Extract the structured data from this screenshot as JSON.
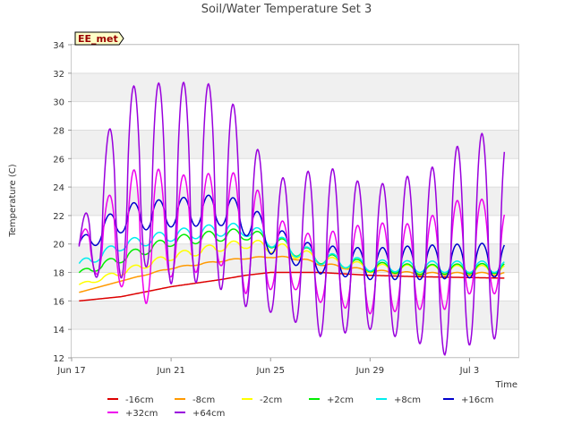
{
  "chart_data": {
    "type": "line",
    "title": "Soil/Water Temperature Set 3",
    "xlabel": "Time",
    "ylabel": "Temperature (C)",
    "site_label": "EE_met",
    "ylim": [
      12,
      34
    ],
    "yticks": [
      12,
      14,
      16,
      18,
      20,
      22,
      24,
      26,
      28,
      30,
      32,
      34
    ],
    "xlim_days": [
      0,
      18
    ],
    "xtick_labels": [
      "Jun 17",
      "Jun 21",
      "Jun 25",
      "Jun 29",
      "Jul 3"
    ],
    "xtick_days": [
      0,
      4,
      8,
      12,
      16
    ],
    "data_start_day": 0.3,
    "data_end_day": 17.4,
    "grid": true,
    "alternating_bands": true,
    "legend_position": "bottom",
    "series": [
      {
        "name": "-16cm",
        "color": "#dd0000",
        "x": [
          0.3,
          2,
          4,
          6,
          7,
          8,
          10,
          12,
          14,
          17.4
        ],
        "y": [
          16.0,
          16.3,
          17.0,
          17.5,
          17.8,
          18.0,
          18.0,
          17.8,
          17.7,
          17.6
        ],
        "daily_amp": [
          0,
          0,
          0,
          0,
          0,
          0,
          0,
          0,
          0,
          0
        ]
      },
      {
        "name": "-8cm",
        "color": "#ff9900",
        "x": [
          0.3,
          2,
          4,
          6,
          7,
          8,
          9,
          10,
          12,
          14,
          17.4
        ],
        "y": [
          16.6,
          17.4,
          18.3,
          18.8,
          19.0,
          19.1,
          19.0,
          18.6,
          18.1,
          17.9,
          17.9
        ],
        "daily_amp": [
          0,
          0,
          0.05,
          0.05,
          0.05,
          0.05,
          0.1,
          0.1,
          0.1,
          0.1,
          0.1
        ]
      },
      {
        "name": "-2cm",
        "color": "#ffff00",
        "x": [
          0.3,
          2,
          4,
          6,
          7,
          8,
          9,
          10,
          12,
          14,
          17.4
        ],
        "y": [
          17.1,
          18.0,
          19.1,
          19.8,
          20.0,
          19.8,
          19.4,
          18.9,
          18.3,
          18.2,
          18.2
        ],
        "daily_amp": [
          0.1,
          0.2,
          0.25,
          0.3,
          0.3,
          0.4,
          0.4,
          0.3,
          0.3,
          0.3,
          0.3
        ]
      },
      {
        "name": "+2cm",
        "color": "#00ee00",
        "x": [
          0.3,
          2,
          4,
          6,
          7,
          8,
          9,
          10,
          12,
          14,
          17.4
        ],
        "y": [
          17.9,
          19.0,
          20.2,
          20.6,
          20.7,
          20.2,
          19.6,
          19.0,
          18.4,
          18.2,
          18.3
        ],
        "daily_amp": [
          0.2,
          0.3,
          0.35,
          0.4,
          0.4,
          0.45,
          0.45,
          0.4,
          0.35,
          0.35,
          0.35
        ]
      },
      {
        "name": "+8cm",
        "color": "#00eeee",
        "x": [
          0.3,
          2,
          4,
          6,
          7,
          8,
          9,
          10,
          12,
          14,
          17.4
        ],
        "y": [
          18.5,
          19.9,
          20.6,
          21.0,
          21.0,
          20.3,
          19.6,
          19.0,
          18.5,
          18.4,
          18.4
        ],
        "daily_amp": [
          0.3,
          0.35,
          0.4,
          0.45,
          0.45,
          0.5,
          0.5,
          0.45,
          0.4,
          0.4,
          0.4
        ]
      },
      {
        "name": "+16cm",
        "color": "#0000cc",
        "x": [
          0.3,
          2,
          4,
          6,
          7,
          8,
          9,
          10,
          12,
          14,
          17.4
        ],
        "y": [
          19.8,
          21.8,
          22.2,
          22.4,
          21.8,
          20.4,
          19.4,
          18.9,
          18.6,
          18.7,
          18.9
        ],
        "daily_amp": [
          0.5,
          1.0,
          1.0,
          1.1,
          1.2,
          1.1,
          0.9,
          1.0,
          1.1,
          1.2,
          1.2
        ]
      },
      {
        "name": "+32cm",
        "color": "#ee00ee",
        "x": [
          0.3,
          2,
          3,
          4,
          5,
          6,
          7,
          8,
          9,
          10,
          12,
          14,
          15,
          16,
          17.4
        ],
        "y": [
          19.5,
          20.8,
          20.8,
          21.2,
          21.5,
          21.7,
          20.8,
          19.6,
          18.8,
          18.3,
          18.3,
          18.4,
          19.0,
          20.0,
          19.5
        ],
        "daily_amp": [
          1.0,
          3.8,
          5.0,
          3.5,
          3.5,
          3.2,
          4.3,
          2.8,
          2.0,
          2.4,
          3.2,
          3.0,
          3.6,
          3.5,
          3.0
        ]
      },
      {
        "name": "+64cm",
        "color": "#9900dd",
        "x": [
          0.3,
          2,
          3,
          4,
          5,
          6,
          7,
          8,
          9,
          10,
          12,
          14,
          15,
          16,
          17.4
        ],
        "y": [
          19.2,
          24.3,
          24.8,
          24.3,
          24.3,
          24.0,
          22.0,
          20.0,
          19.5,
          19.6,
          19.0,
          19.0,
          19.0,
          20.4,
          20.5
        ],
        "daily_amp": [
          1.5,
          6.7,
          6.4,
          7.1,
          7.0,
          7.2,
          6.4,
          4.8,
          5.0,
          6.1,
          5.0,
          6.0,
          6.8,
          7.5,
          7.0
        ]
      }
    ]
  }
}
